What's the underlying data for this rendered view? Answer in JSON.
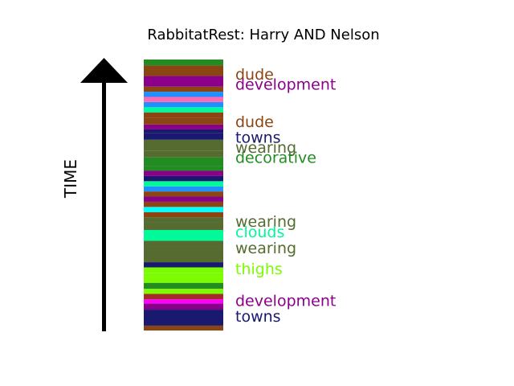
{
  "chart_data": {
    "type": "bar",
    "title": "RabbitatRest: Harry AND Nelson",
    "ylabel": "TIME",
    "xlabel": "",
    "ylim": [
      0,
      100
    ],
    "segments": [
      {
        "start": 0.0,
        "end": 1.8,
        "color": "#8B4513"
      },
      {
        "start": 1.8,
        "end": 7.7,
        "color": "#191970"
      },
      {
        "start": 7.7,
        "end": 10.0,
        "color": "#8B008B"
      },
      {
        "start": 10.0,
        "end": 11.5,
        "color": "#FF00FF"
      },
      {
        "start": 11.5,
        "end": 13.5,
        "color": "#A52A2A"
      },
      {
        "start": 13.5,
        "end": 15.4,
        "color": "#7CFC00"
      },
      {
        "start": 15.4,
        "end": 17.6,
        "color": "#228B22"
      },
      {
        "start": 17.6,
        "end": 19.6,
        "color": "#7CFC00"
      },
      {
        "start": 19.6,
        "end": 21.3,
        "color": "#7CFC00"
      },
      {
        "start": 21.3,
        "end": 23.3,
        "color": "#7CFC00"
      },
      {
        "start": 23.3,
        "end": 25.2,
        "color": "#191970"
      },
      {
        "start": 25.2,
        "end": 31.0,
        "color": "#556B2F"
      },
      {
        "start": 31.0,
        "end": 33.1,
        "color": "#556B2F"
      },
      {
        "start": 33.1,
        "end": 37.1,
        "color": "#00FA9A"
      },
      {
        "start": 37.1,
        "end": 39.9,
        "color": "#556B2F"
      },
      {
        "start": 39.9,
        "end": 41.8,
        "color": "#556B2F"
      },
      {
        "start": 41.8,
        "end": 43.7,
        "color": "#8B4513"
      },
      {
        "start": 43.7,
        "end": 45.6,
        "color": "#00FFFF"
      },
      {
        "start": 45.6,
        "end": 47.5,
        "color": "#8B4513"
      },
      {
        "start": 47.5,
        "end": 49.4,
        "color": "#8B008B"
      },
      {
        "start": 49.4,
        "end": 51.3,
        "color": "#8B4513"
      },
      {
        "start": 51.3,
        "end": 53.2,
        "color": "#1E90FF"
      },
      {
        "start": 53.2,
        "end": 55.1,
        "color": "#00FA9A"
      },
      {
        "start": 55.1,
        "end": 57.0,
        "color": "#191970"
      },
      {
        "start": 57.0,
        "end": 58.9,
        "color": "#8B008B"
      },
      {
        "start": 58.9,
        "end": 60.8,
        "color": "#228B22"
      },
      {
        "start": 60.8,
        "end": 63.9,
        "color": "#228B22"
      },
      {
        "start": 63.9,
        "end": 66.4,
        "color": "#556B2F"
      },
      {
        "start": 66.4,
        "end": 70.4,
        "color": "#556B2F"
      },
      {
        "start": 70.4,
        "end": 72.9,
        "color": "#191970"
      },
      {
        "start": 72.9,
        "end": 74.2,
        "color": "#191970"
      },
      {
        "start": 74.2,
        "end": 76.0,
        "color": "#8B008B"
      },
      {
        "start": 76.0,
        "end": 78.6,
        "color": "#8B4513"
      },
      {
        "start": 78.6,
        "end": 80.5,
        "color": "#8B4513"
      },
      {
        "start": 80.5,
        "end": 82.4,
        "color": "#00FA9A"
      },
      {
        "start": 82.4,
        "end": 84.3,
        "color": "#1E90FF"
      },
      {
        "start": 84.3,
        "end": 86.2,
        "color": "#FF69B4"
      },
      {
        "start": 86.2,
        "end": 88.1,
        "color": "#1E90FF"
      },
      {
        "start": 88.1,
        "end": 90.0,
        "color": "#8B4513"
      },
      {
        "start": 90.0,
        "end": 93.9,
        "color": "#8B008B"
      },
      {
        "start": 93.9,
        "end": 97.8,
        "color": "#8B4513"
      },
      {
        "start": 97.8,
        "end": 100.0,
        "color": "#228B22"
      }
    ],
    "annotations": [
      {
        "text": "dude",
        "value": 94.3,
        "color": "#8B4513"
      },
      {
        "text": "development",
        "value": 90.6,
        "color": "#8B008B"
      },
      {
        "text": "dude",
        "value": 76.9,
        "color": "#8B4513"
      },
      {
        "text": "towns",
        "value": 71.0,
        "color": "#191970"
      },
      {
        "text": "wearing",
        "value": 67.4,
        "color": "#556B2F"
      },
      {
        "text": "decorative",
        "value": 63.6,
        "color": "#228B22"
      },
      {
        "text": "wearing",
        "value": 40.1,
        "color": "#556B2F"
      },
      {
        "text": "clouds",
        "value": 36.2,
        "color": "#00FA9A"
      },
      {
        "text": "wearing",
        "value": 30.3,
        "color": "#556B2F"
      },
      {
        "text": "thighs",
        "value": 22.6,
        "color": "#7CFC00"
      },
      {
        "text": "development",
        "value": 10.9,
        "color": "#8B008B"
      },
      {
        "text": "towns",
        "value": 5.0,
        "color": "#191970"
      }
    ]
  }
}
